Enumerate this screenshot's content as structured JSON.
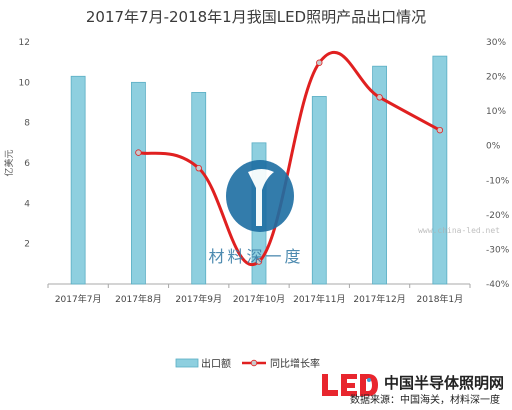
{
  "chart_data": {
    "type": "bar",
    "title": "2017年7月-2018年1月我国LED照明产品出口情况",
    "ylabel": "亿美元",
    "ylim": [
      0,
      12
    ],
    "y2lim": [
      -0.4,
      0.3
    ],
    "y_ticks": [
      "2",
      "4",
      "6",
      "8",
      "10",
      "12"
    ],
    "y2_ticks": [
      "-40%",
      "-30%",
      "-20%",
      "-10%",
      "0%",
      "10%",
      "20%",
      "30%"
    ],
    "grid": false,
    "legend_position": "bottom",
    "categories": [
      "2017年7月",
      "2017年8月",
      "2017年9月",
      "2017年10月",
      "2017年11月",
      "2017年12月",
      "2018年1月"
    ],
    "series": [
      {
        "name": "出口额",
        "type": "bar",
        "axis": "left",
        "values": [
          10.3,
          10.0,
          9.5,
          7.0,
          9.3,
          10.8,
          11.3
        ]
      },
      {
        "name": "同比增长率",
        "type": "line",
        "axis": "right",
        "values": [
          null,
          -0.02,
          -0.065,
          -0.335,
          0.24,
          0.14,
          0.045
        ]
      }
    ]
  },
  "colors": {
    "bar_fill": "#8ecfdf",
    "bar_stroke": "#5aaec4",
    "line": "#e02020",
    "marker": "#c8cacc",
    "axis": "#a8a8a8",
    "watermark": "#1d6ea3"
  },
  "watermark": {
    "text": "材料深一度"
  },
  "footer": {
    "brand": "中国半导体照明网",
    "source": "数据来源：中国海关，材料深一度",
    "url": "www.china-led.net"
  }
}
